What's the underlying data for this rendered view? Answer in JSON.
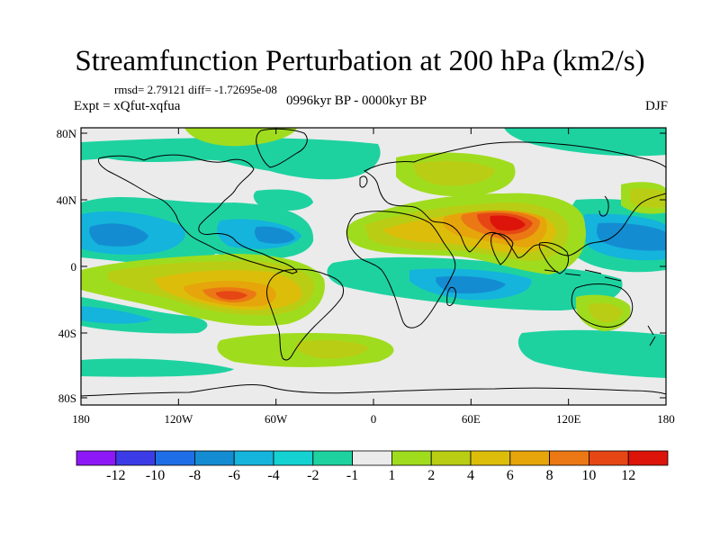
{
  "header": {
    "title": "Streamfunction Perturbation at 200 hPa (km2/s)",
    "stats": "rmsd= 2.79121 diff= -1.72695e-08",
    "experiment": "Expt = xQfut-xqfua",
    "period": "0996kyr BP - 0000kyr BP",
    "season": "DJF"
  },
  "axes": {
    "x_ticks": [
      "180",
      "120W",
      "60W",
      "0",
      "60E",
      "120E",
      "180"
    ],
    "y_ticks": [
      "80N",
      "40N",
      "0",
      "40S",
      "80S"
    ]
  },
  "legend": {
    "labels": [
      "-12",
      "-10",
      "-8",
      "-6",
      "-4",
      "-2",
      "-1",
      "1",
      "2",
      "4",
      "6",
      "8",
      "10",
      "12"
    ],
    "colors": [
      "#8c19f5",
      "#3c3ce6",
      "#1e6ee6",
      "#148cd2",
      "#14b4dc",
      "#14d2d2",
      "#1ed2a0",
      "#ebebeb",
      "#a0dc1e",
      "#b9cd14",
      "#dcbe0a",
      "#e6a50a",
      "#eb7814",
      "#e64614",
      "#dc140a"
    ]
  }
}
